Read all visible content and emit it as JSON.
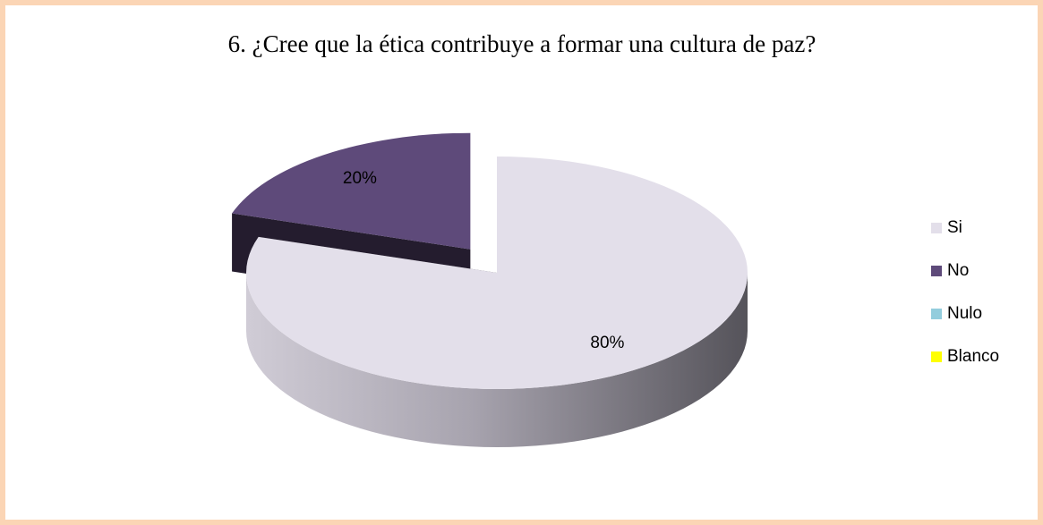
{
  "chart_data": {
    "type": "pie3d",
    "title": "6. ¿Cree que la ética contribuye a formar una cultura de paz?",
    "categories": [
      "Si",
      "No",
      "Nulo",
      "Blanco"
    ],
    "series": [
      {
        "values": [
          80,
          20,
          0,
          0
        ],
        "value_labels": [
          "80%",
          "20%",
          null,
          null
        ],
        "colors": [
          "#e3dfea",
          "#5e4a7a",
          "#93cddd",
          "#ffff00"
        ]
      }
    ],
    "exploded": [
      "No"
    ],
    "legend": "right"
  }
}
